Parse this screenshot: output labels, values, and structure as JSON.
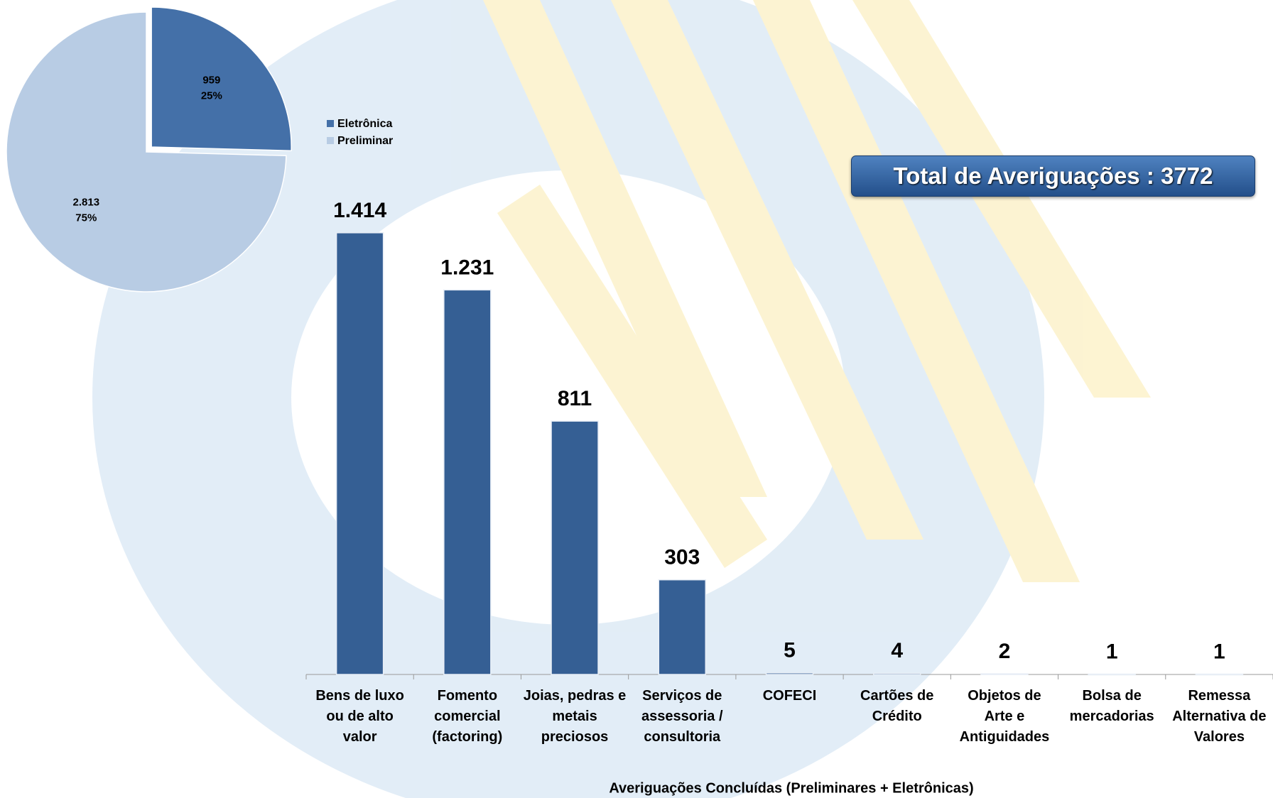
{
  "chart_data": [
    {
      "type": "pie",
      "categories": [
        "Eletrônica",
        "Preliminar"
      ],
      "values": [
        959,
        2813
      ],
      "value_labels": [
        "959",
        "2.813"
      ],
      "percentages": [
        25,
        75
      ],
      "percentage_labels": [
        "25%",
        "75%"
      ],
      "colors": [
        "#4470a8",
        "#b8cce4"
      ],
      "exploded": [
        true,
        false
      ],
      "legend": "right"
    },
    {
      "type": "bar",
      "x_label": "Averiguações Concluídas (Preliminares + Eletrônicas)",
      "categories": [
        "Bens de luxo ou de alto valor",
        "Fomento comercial (factoring)",
        "Joias, pedras e metais preciosos",
        "Serviços de assessoria / consultoria",
        "COFECI",
        "Cartões de Crédito",
        "Objetos de Arte e Antiguidades",
        "Bolsa de mercadorias",
        "Remessa Alternativa de Valores"
      ],
      "values": [
        1414,
        1231,
        811,
        303,
        5,
        4,
        2,
        1,
        1
      ],
      "value_labels": [
        "1.414",
        "1.231",
        "811",
        "303",
        "5",
        "4",
        "2",
        "1",
        "1"
      ],
      "color": "#355f94",
      "ylim": [
        0,
        1600
      ]
    }
  ],
  "banner": {
    "text": "Total de Averiguações : 3772"
  }
}
